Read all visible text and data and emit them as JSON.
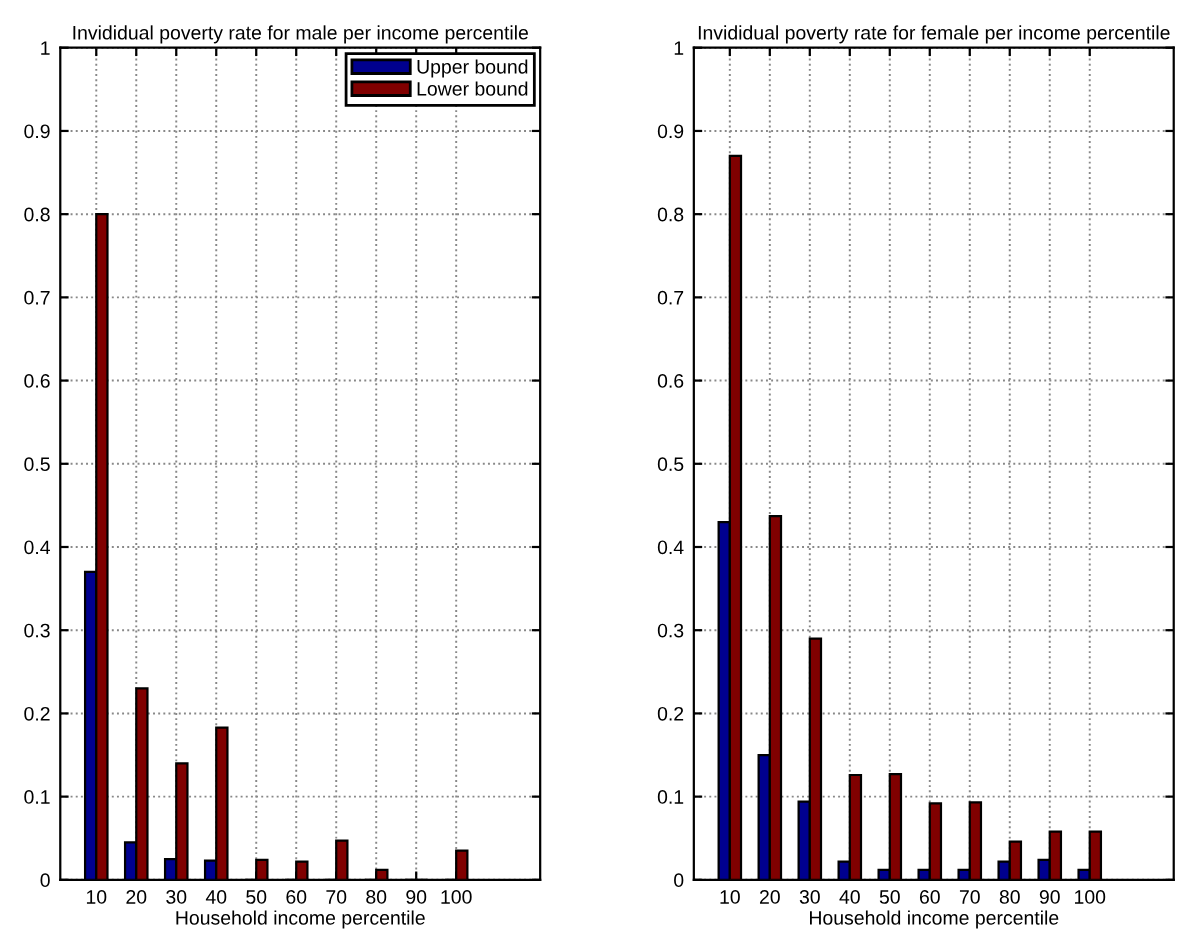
{
  "chart_data": [
    {
      "type": "bar",
      "title": "Invididual poverty rate for male per income percentile",
      "xlabel": "Household income percentile",
      "categories": [
        "10",
        "20",
        "30",
        "40",
        "50",
        "60",
        "70",
        "80",
        "90",
        "100"
      ],
      "series": [
        {
          "name": "Upper bound",
          "color": "#00008f",
          "values": [
            0.37,
            0.045,
            0.025,
            0.023,
            0,
            0,
            0,
            0,
            0,
            0
          ]
        },
        {
          "name": "Lower bound",
          "color": "#800000",
          "values": [
            0.8,
            0.23,
            0.14,
            0.183,
            0.024,
            0.022,
            0.047,
            0.012,
            0,
            0.035
          ]
        }
      ],
      "ylim": [
        0,
        1
      ],
      "yticks": [
        0,
        0.1,
        0.2,
        0.3,
        0.4,
        0.5,
        0.6,
        0.7,
        0.8,
        0.9,
        1
      ],
      "grid": true,
      "legend": "top right"
    },
    {
      "type": "bar",
      "title": "Invididual poverty rate for female per income percentile",
      "xlabel": "Household income percentile",
      "categories": [
        "10",
        "20",
        "30",
        "40",
        "50",
        "60",
        "70",
        "80",
        "90",
        "100"
      ],
      "series": [
        {
          "color": "#00008f",
          "values": [
            0.43,
            0.15,
            0.094,
            0.022,
            0.012,
            0.012,
            0.012,
            0.022,
            0.024,
            0.012
          ]
        },
        {
          "color": "#800000",
          "values": [
            0.87,
            0.437,
            0.29,
            0.126,
            0.127,
            0.092,
            0.093,
            0.046,
            0.058,
            0.058
          ]
        }
      ],
      "ylim": [
        0,
        1
      ],
      "yticks": [
        0,
        0.1,
        0.2,
        0.3,
        0.4,
        0.5,
        0.6,
        0.7,
        0.8,
        0.9,
        1
      ],
      "grid": true
    }
  ]
}
